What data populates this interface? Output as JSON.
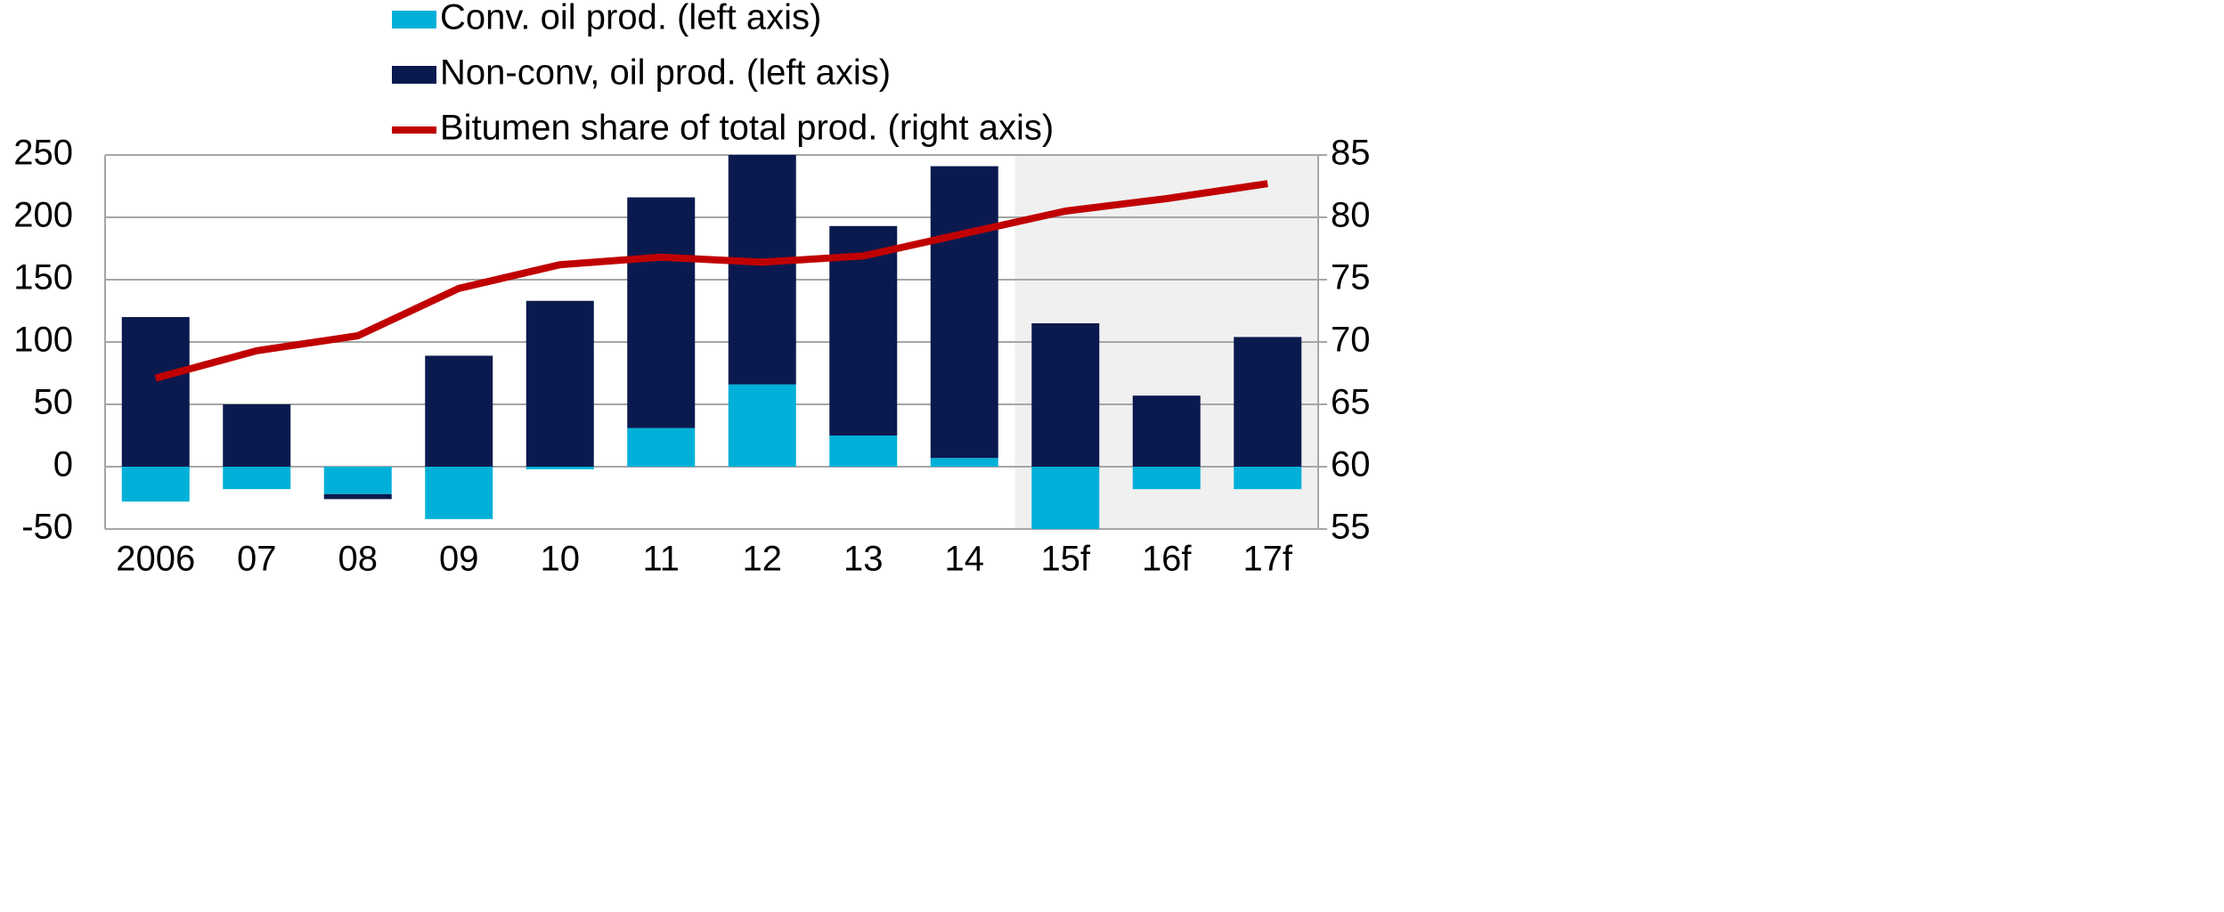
{
  "chart_data": {
    "type": "bar",
    "categories": [
      "2006",
      "07",
      "08",
      "09",
      "10",
      "11",
      "12",
      "13",
      "14",
      "15f",
      "16f",
      "17f"
    ],
    "series": [
      {
        "name": "Conv. oil prod. (left axis)",
        "color": "#00b0d8",
        "values": [
          -28,
          -18,
          -22,
          -42,
          -2,
          31,
          66,
          25,
          7,
          -50,
          -18,
          -18
        ]
      },
      {
        "name": "Non-conv, oil prod. (left axis)",
        "color": "#0a1a4f",
        "values": [
          120,
          50,
          -4,
          89,
          133,
          185,
          184,
          168,
          234,
          115,
          57,
          104
        ]
      },
      {
        "name": "Bitumen share of total prod. (right axis)",
        "color": "#c00000",
        "type": "line",
        "axis": "y2",
        "values": [
          67.1,
          69.3,
          70.5,
          74.3,
          76.2,
          76.8,
          76.4,
          76.9,
          78.7,
          80.5,
          81.5,
          82.7
        ]
      }
    ],
    "ylim": [
      -50,
      250
    ],
    "yticks": [
      -50,
      0,
      50,
      100,
      150,
      200,
      250
    ],
    "y2lim": [
      55,
      85
    ],
    "y2ticks": [
      55,
      60,
      65,
      70,
      75,
      80,
      85
    ],
    "grid": true,
    "legend": "top",
    "stacked": true,
    "shade_start_index": 9
  }
}
